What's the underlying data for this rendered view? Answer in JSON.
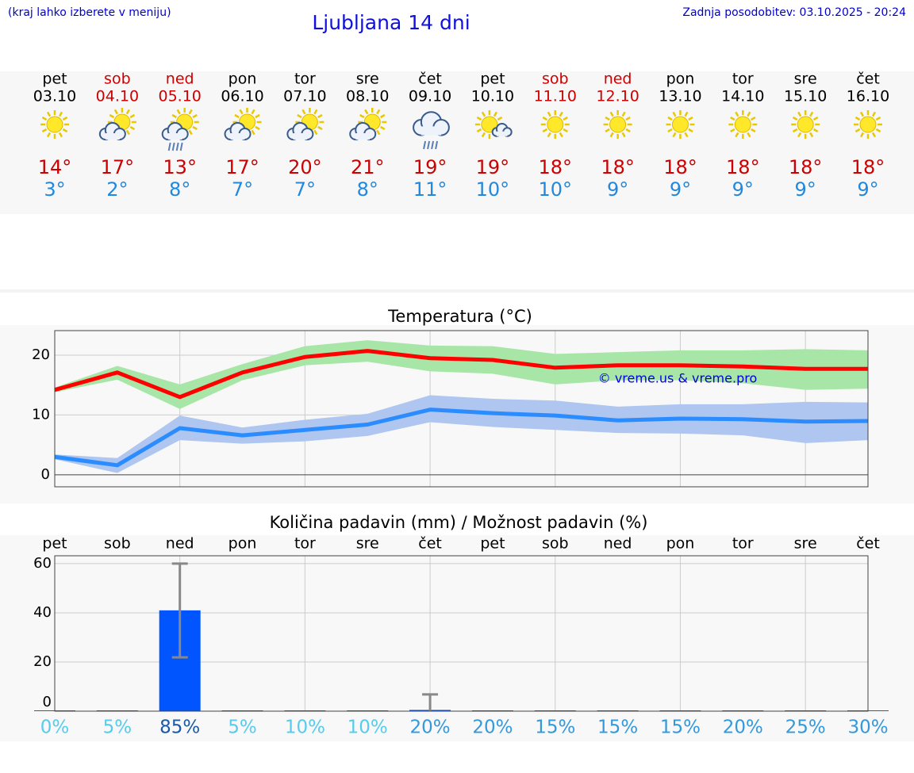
{
  "header": {
    "note": "(kraj lahko izberete v meniju)",
    "title": "Ljubljana 14 dni",
    "updated": "Zadnja posodobitev: 03.10.2025 - 20:24"
  },
  "days": [
    {
      "weekday": "pet",
      "date": "03.10",
      "high": "14°",
      "low": "3°",
      "weekend": false
    },
    {
      "weekday": "sob",
      "date": "04.10",
      "high": "17°",
      "low": "2°",
      "weekend": true
    },
    {
      "weekday": "ned",
      "date": "05.10",
      "high": "13°",
      "low": "8°",
      "weekend": true
    },
    {
      "weekday": "pon",
      "date": "06.10",
      "high": "17°",
      "low": "7°",
      "weekend": false
    },
    {
      "weekday": "tor",
      "date": "07.10",
      "high": "20°",
      "low": "7°",
      "weekend": false
    },
    {
      "weekday": "sre",
      "date": "08.10",
      "high": "21°",
      "low": "8°",
      "weekend": false
    },
    {
      "weekday": "čet",
      "date": "09.10",
      "high": "19°",
      "low": "11°",
      "weekend": false
    },
    {
      "weekday": "pet",
      "date": "10.10",
      "high": "19°",
      "low": "10°",
      "weekend": false
    },
    {
      "weekday": "sob",
      "date": "11.10",
      "high": "18°",
      "low": "10°",
      "weekend": true
    },
    {
      "weekday": "ned",
      "date": "12.10",
      "high": "18°",
      "low": "9°",
      "weekend": true
    },
    {
      "weekday": "pon",
      "date": "13.10",
      "high": "18°",
      "low": "9°",
      "weekend": false
    },
    {
      "weekday": "tor",
      "date": "14.10",
      "high": "18°",
      "low": "9°",
      "weekend": false
    },
    {
      "weekday": "sre",
      "date": "15.10",
      "high": "18°",
      "low": "9°",
      "weekend": false
    },
    {
      "weekday": "čet",
      "date": "16.10",
      "high": "18°",
      "low": "9°",
      "weekend": false
    }
  ],
  "chart_data": [
    {
      "type": "line",
      "title": "Temperatura (°C)",
      "annotation": "© vreme.us & vreme.pro",
      "categories": [
        null,
        null,
        null,
        null,
        null,
        null,
        null,
        null,
        null,
        null,
        null,
        null,
        null,
        null
      ],
      "ylim": [
        -2,
        24.1
      ],
      "yticks": [
        0,
        10,
        20
      ],
      "grid": true,
      "series": [
        {
          "color": "#ff0000",
          "band_color": "#a8e6a8",
          "values": [
            14.2,
            17.1,
            13.0,
            17.1,
            19.7,
            20.7,
            19.5,
            19.2,
            17.9,
            18.3,
            18.3,
            18.1,
            17.7,
            17.7
          ],
          "band_low": [
            13.8,
            15.9,
            11.0,
            15.8,
            18.3,
            18.9,
            17.3,
            16.9,
            15.1,
            15.8,
            15.8,
            15.3,
            14.2,
            14.4
          ],
          "band_high": [
            14.6,
            18.2,
            15.1,
            18.5,
            21.5,
            22.5,
            21.6,
            21.5,
            20.2,
            20.5,
            20.8,
            20.8,
            21.0,
            20.8
          ]
        },
        {
          "color": "#2b8cff",
          "band_color": "#aec6f0",
          "values": [
            3.0,
            1.6,
            7.8,
            6.6,
            7.5,
            8.4,
            10.9,
            10.3,
            9.9,
            9.1,
            9.4,
            9.3,
            8.9,
            9.0
          ],
          "band_low": [
            2.6,
            0.3,
            5.8,
            5.2,
            5.6,
            6.5,
            8.8,
            8.0,
            7.5,
            7.0,
            6.9,
            6.6,
            5.3,
            5.8
          ],
          "band_high": [
            3.4,
            2.8,
            9.9,
            7.9,
            9.2,
            10.2,
            13.3,
            12.7,
            12.4,
            11.4,
            11.8,
            11.8,
            12.2,
            12.1
          ]
        }
      ]
    },
    {
      "type": "bar",
      "title": "Količina padavin (mm) / Možnost padavin (%)",
      "categories": [
        "pet",
        "sob",
        "ned",
        "pon",
        "tor",
        "sre",
        "čet",
        "pet",
        "sob",
        "ned",
        "pon",
        "tor",
        "sre",
        "čet"
      ],
      "ylim": [
        0,
        63.2
      ],
      "yticks": [
        0,
        20,
        40,
        60
      ],
      "grid": true,
      "series": [
        {
          "color": "#0055ff",
          "values": [
            0,
            0,
            41,
            0,
            0,
            0,
            0.5,
            0,
            0,
            0,
            0,
            0,
            0,
            0
          ],
          "range_low": [
            null,
            null,
            21.9,
            null,
            null,
            null,
            0,
            null,
            null,
            null,
            null,
            null,
            null,
            null
          ],
          "range_high": [
            null,
            null,
            60,
            null,
            null,
            null,
            6.8,
            null,
            null,
            null,
            null,
            null,
            null,
            null
          ]
        }
      ],
      "probability": {
        "values": [
          0,
          5,
          85,
          5,
          10,
          10,
          20,
          20,
          15,
          15,
          15,
          20,
          25,
          30
        ],
        "value_labels": [
          "0%",
          "5%",
          "85%",
          "5%",
          "10%",
          "10%",
          "20%",
          "20%",
          "15%",
          "15%",
          "15%",
          "20%",
          "25%",
          "30%"
        ]
      }
    }
  ]
}
